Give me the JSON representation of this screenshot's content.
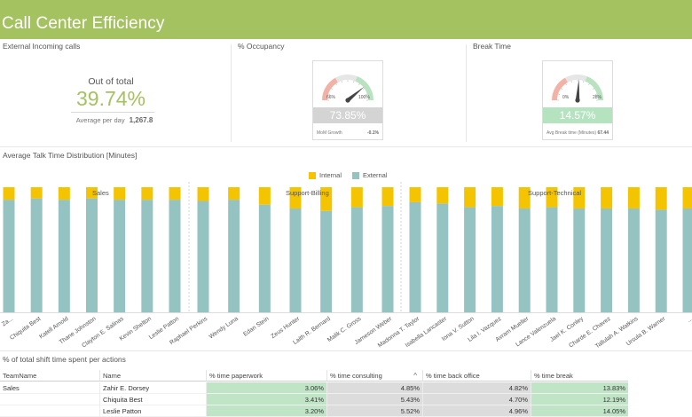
{
  "header": {
    "title": "Call Center Efficiency"
  },
  "panels": {
    "incoming": {
      "title": "External Incoming calls",
      "label": "Out of total",
      "value": "39.74%",
      "sub_label": "Average per day",
      "sub_value": "1,267.8"
    },
    "occupancy": {
      "title": "% Occupancy",
      "value": "73.85%",
      "min_label": "66%",
      "max_label": "100%",
      "foot_label": "MoM Growth",
      "foot_value": "-0.1%",
      "needle_fraction": 0.78,
      "bar_color": "#d4d4d4"
    },
    "break": {
      "title": "Break Time",
      "value": "14.57%",
      "min_label": "0%",
      "max_label": "28%",
      "foot_label": "Avg Break time (Minutes)",
      "foot_value": "67.44",
      "needle_fraction": 0.52,
      "bar_color": "#b5e3c0"
    }
  },
  "chart_data": {
    "type": "bar",
    "title": "Average Talk Time Distribution [Minutes]",
    "stacked": "percent",
    "legend": {
      "placement": "top-center"
    },
    "colors": {
      "Internal": "#f5c400",
      "External": "#95c3c2"
    },
    "groups": [
      {
        "name": "Sales",
        "categories": [
          "Za...",
          "Chiquita Best",
          "Katell Arnold",
          "Thane Johnston",
          "Clayton E. Salinas",
          "Kevin Shelton",
          "Leslie Patton"
        ],
        "internal": [
          10,
          9,
          10,
          9,
          10,
          10,
          10
        ]
      },
      {
        "name": "Support-Billing",
        "categories": [
          "Raphael Perkins",
          "Wendy Luna",
          "Edan Stein",
          "Zeus Hunter",
          "Laith R. Bernard",
          "Malik C. Gross",
          "Jameson Weber"
        ],
        "internal": [
          11,
          10,
          14,
          17,
          19,
          16,
          15
        ]
      },
      {
        "name": "Support-Technical",
        "categories": [
          "Madonna T. Taylor",
          "Isabella Lancaster",
          "Iona V. Sutton",
          "Lila I. Vazquez",
          "Avram Mueller",
          "Lance Valenzuela",
          "Jael K. Conley",
          "Charde E. Chavez",
          "Tallulah A. Watkins",
          "Ursula B. Warner",
          "..."
        ],
        "internal": [
          12,
          13,
          16,
          15,
          17,
          16,
          17,
          17,
          17,
          18,
          17
        ]
      }
    ],
    "series": [
      {
        "name": "Internal"
      },
      {
        "name": "External"
      }
    ]
  },
  "table": {
    "title": "% of total shift time spent per actions",
    "columns": [
      "TeamName",
      "Name",
      "% time paperwork",
      "% time consulting",
      "% time back office",
      "% time break"
    ],
    "rows": [
      [
        "Sales",
        "Zahir E. Dorsey",
        "3.06%",
        "4.85%",
        "4.82%",
        "13.83%"
      ],
      [
        "",
        "Chiquita Best",
        "3.41%",
        "5.43%",
        "4.70%",
        "12.19%"
      ],
      [
        "",
        "Leslie Patton",
        "3.20%",
        "5.52%",
        "4.96%",
        "14.05%"
      ]
    ]
  }
}
